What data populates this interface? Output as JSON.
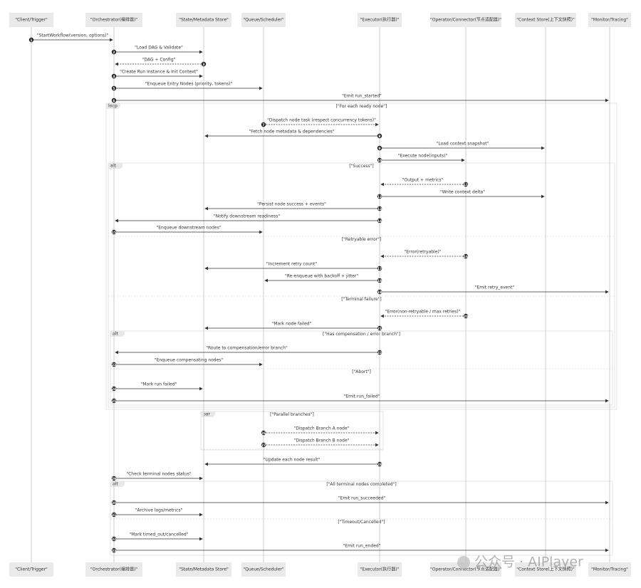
{
  "participants": [
    "\"Client/Trigger\"",
    "\"Orchestrator(编排器)\"",
    "\"State/Metadata Store\"",
    "\"Queue/Scheduler\"",
    "\"Executor(执行器)\"",
    "\"Operator/Connector(节点适配器)\"",
    "\"Context Store(上下文快照)\"",
    "\"Monitor/Tracing\""
  ],
  "messages": [
    {
      "number": 1,
      "label": "\"StartWorkflow(version, options)\""
    },
    {
      "number": 2,
      "label": "\"Load DAG & Validate\""
    },
    {
      "number": 3,
      "label": "\"DAG + Config\""
    },
    {
      "number": 4,
      "label": "\"Create Run Instance & Init Context\""
    },
    {
      "number": 5,
      "label": "\"Enqueue Entry Nodes (priority, tokens)\""
    },
    {
      "number": 6,
      "label": "\"Emit run_started\""
    },
    {
      "number": 7,
      "label": "\"Dispatch node task (respect concurrency tokens)\""
    },
    {
      "number": 8,
      "label": "\"Fetch node metadata & dependencies\""
    },
    {
      "number": 9,
      "label": "\"Load context snapshot\""
    },
    {
      "number": 10,
      "label": "\"Execute node(inputs)\""
    },
    {
      "number": 11,
      "label": "\"Output + metrics\""
    },
    {
      "number": 12,
      "label": "\"Write context delta\""
    },
    {
      "number": 13,
      "label": "\"Persist node success + events\""
    },
    {
      "number": 14,
      "label": "\"Notify downstream readiness\""
    },
    {
      "number": 15,
      "label": "\"Enqueue downstream nodes\""
    },
    {
      "number": 16,
      "label": "\"Error(retryable)\""
    },
    {
      "number": 17,
      "label": "\"Increment retry count\""
    },
    {
      "number": 18,
      "label": "\"Re-enqueue with backoff + jitter\""
    },
    {
      "number": 19,
      "label": "\"Emit retry_event\""
    },
    {
      "number": 20,
      "label": "\"Error(non-retryable / max retries)\""
    },
    {
      "number": 21,
      "label": "\"Mark node failed\""
    },
    {
      "number": 22,
      "label": "\"Route to compensation/error branch\""
    },
    {
      "number": 23,
      "label": "\"Enqueue compensating nodes\""
    },
    {
      "number": 24,
      "label": "\"Mark run failed\""
    },
    {
      "number": 25,
      "label": "\"Emit run_failed\""
    },
    {
      "number": 26,
      "label": "\"Dispatch Branch A node\""
    },
    {
      "number": 27,
      "label": "\"Dispatch Branch B node\""
    },
    {
      "number": 28,
      "label": "\"Update each node result\""
    },
    {
      "number": 29,
      "label": "\"Check terminal nodes status\""
    },
    {
      "number": 30,
      "label": "\"Emit run_succeeded\""
    },
    {
      "number": 31,
      "label": "\"Archive logs/metrics\""
    },
    {
      "number": 32,
      "label": "\"Mark timed_out/cancelled\""
    },
    {
      "number": 33,
      "label": "\"Emit run_ended\""
    }
  ],
  "fragments": [
    {
      "kind": "loop",
      "sections": [
        "[\"For each ready node\"]"
      ]
    },
    {
      "kind": "alt",
      "sections": [
        "[\"Success\"]",
        "[\"Retryable error\"]",
        "[\"Terminal failure\"]"
      ]
    },
    {
      "kind": "alt",
      "sections": [
        "[\"Has compensation / error branch\"]",
        "[\"Abort\"]"
      ]
    },
    {
      "kind": "par",
      "sections": [
        "[\"Parallel branches\"]"
      ]
    },
    {
      "kind": "alt",
      "sections": [
        "[\"All terminal nodes completed\"]",
        "[\"Timeout/Cancelled\"]"
      ]
    }
  ],
  "watermark": "公众号 · AIPlayer"
}
